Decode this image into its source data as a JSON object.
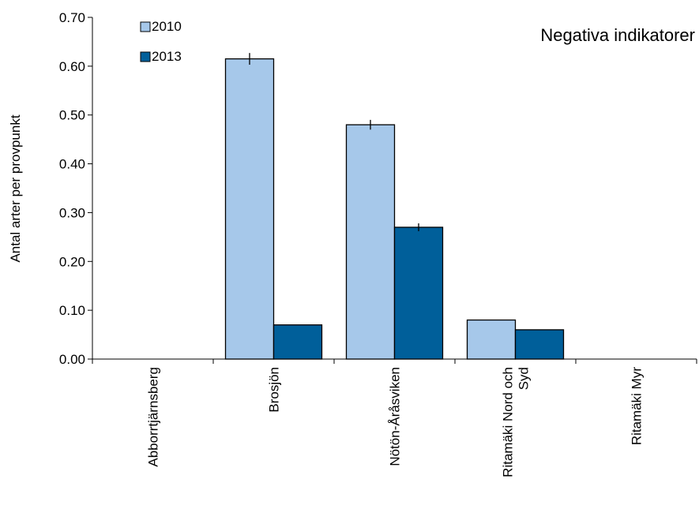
{
  "chart_data": {
    "type": "bar",
    "title": "Negativa indikatorer",
    "ylabel": "Antal arter per provpunkt",
    "xlabel": "",
    "ylim": [
      0,
      0.7
    ],
    "yticks": [
      "0.00",
      "0.10",
      "0.20",
      "0.30",
      "0.40",
      "0.50",
      "0.60",
      "0.70"
    ],
    "categories": [
      "Abborrtjärnsberg",
      "Brosjön",
      "Nötön-Åråsviken",
      "Ritamäki Nord och Syd",
      "Ritamäki Myr"
    ],
    "category_lines": [
      [
        "Abborrtjärnsberg"
      ],
      [
        "Brosjön"
      ],
      [
        "Nötön-Åråsviken"
      ],
      [
        "Ritamäki Nord och",
        "Syd"
      ],
      [
        "Ritamäki Myr"
      ]
    ],
    "series": [
      {
        "name": "2010",
        "color": "#a6c8ea",
        "values": [
          0,
          0.615,
          0.48,
          0.08,
          0
        ],
        "errors": [
          0,
          0.012,
          0.01,
          0,
          0
        ]
      },
      {
        "name": "2013",
        "color": "#005f9a",
        "values": [
          0,
          0.07,
          0.27,
          0.06,
          0
        ],
        "errors": [
          0,
          0,
          0.008,
          0,
          0
        ]
      }
    ],
    "legend_position": "top-left",
    "grid": false
  }
}
